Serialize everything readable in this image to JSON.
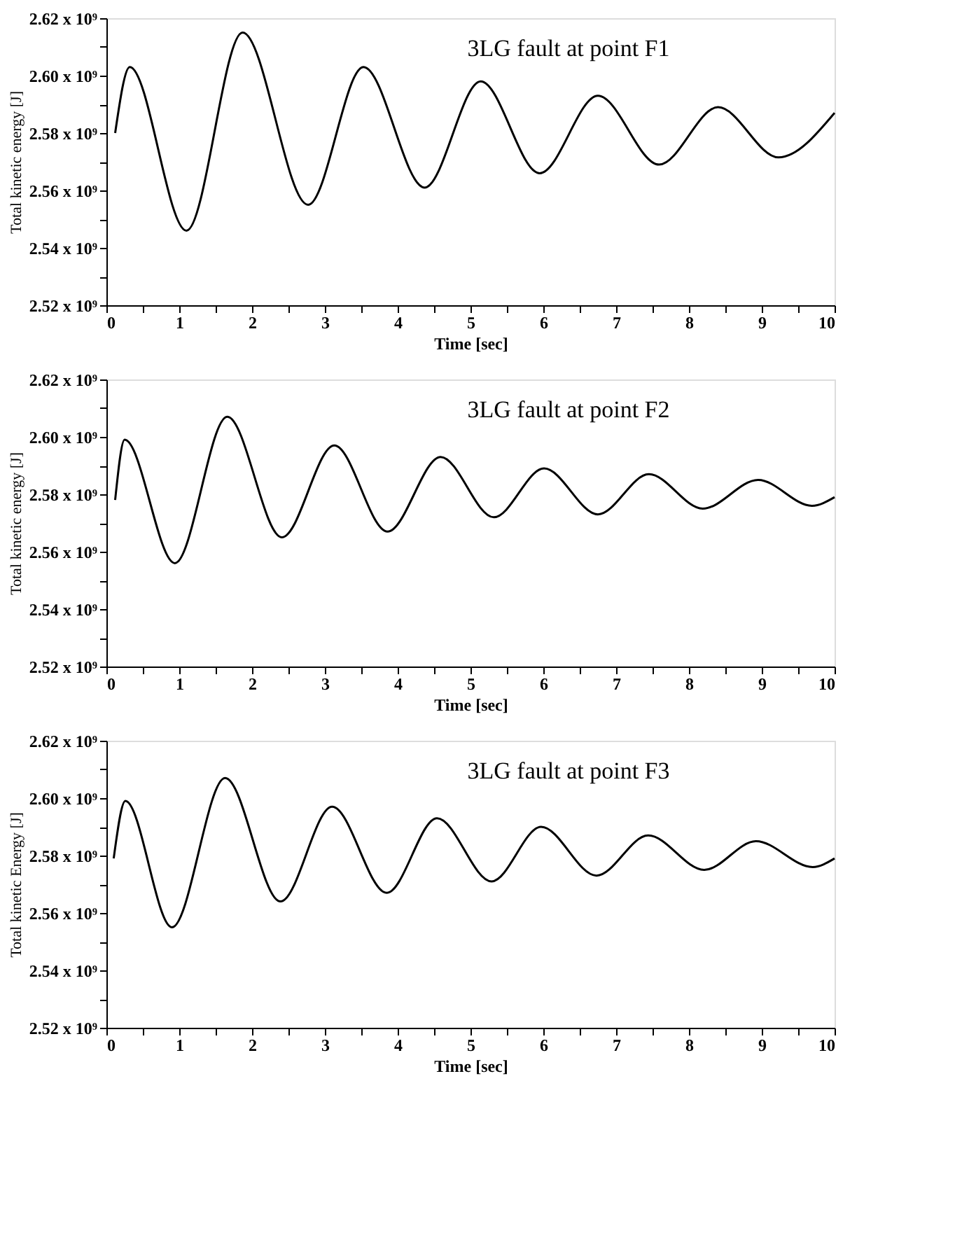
{
  "chart_data": [
    {
      "type": "line",
      "xlabel": "Time [sec]",
      "ylabel": "Total kinetic energy [J]",
      "annotations": [
        "3LG fault at point F1"
      ],
      "grid": false,
      "marker": "none",
      "line_style": "solid",
      "xlim": [
        0,
        10
      ],
      "ylim": [
        2520000000.0,
        2620000000.0
      ],
      "xticks": [
        0,
        {
          "value": 0.5,
          "label": null
        },
        1,
        {
          "value": 1.5,
          "label": null
        },
        2,
        {
          "value": 2.5,
          "label": null
        },
        3,
        {
          "value": 3.5,
          "label": null
        },
        4,
        {
          "value": 4.5,
          "label": null
        },
        5,
        {
          "value": 5.5,
          "label": null
        },
        6,
        {
          "value": 6.5,
          "label": null
        },
        7,
        {
          "value": 7.5,
          "label": null
        },
        8,
        {
          "value": 8.5,
          "label": null
        },
        9,
        {
          "value": 9.5,
          "label": null
        },
        10
      ],
      "yticks": [
        {
          "value": 2520000000.0,
          "label": "2.52 x 10⁹"
        },
        {
          "value": 2530000000.0,
          "label": null
        },
        {
          "value": 2540000000.0,
          "label": "2.54 x 10⁹"
        },
        {
          "value": 2550000000.0,
          "label": null
        },
        {
          "value": 2560000000.0,
          "label": "2.56 x 10⁹"
        },
        {
          "value": 2570000000.0,
          "label": null
        },
        {
          "value": 2580000000.0,
          "label": "2.58 x 10⁹"
        },
        {
          "value": 2590000000.0,
          "label": null
        },
        {
          "value": 2600000000.0,
          "label": "2.60 x 10⁹"
        },
        {
          "value": 2610000000.0,
          "label": null
        },
        {
          "value": 2620000000.0,
          "label": "2.62 x 10⁹"
        }
      ],
      "series": [
        {
          "color": "#000000",
          "x": [
            0.12,
            0.32,
            1.1,
            1.87,
            2.77,
            3.53,
            4.37,
            5.14,
            5.95,
            6.75,
            7.59,
            8.4,
            9.23,
            10.0
          ],
          "values": [
            2580000000.0,
            2603000000.0,
            2546000000.0,
            2615000000.0,
            2555000000.0,
            2603000000.0,
            2561000000.0,
            2598000000.0,
            2566000000.0,
            2593000000.0,
            2569000000.0,
            2589000000.0,
            2571500000.0,
            2587000000.0
          ]
        }
      ]
    },
    {
      "type": "line",
      "xlabel": "Time [sec]",
      "ylabel": "Total kinetic energy [J]",
      "annotations": [
        "3LG fault at point F2"
      ],
      "grid": false,
      "marker": "none",
      "line_style": "solid",
      "xlim": [
        0,
        10
      ],
      "ylim": [
        2520000000.0,
        2620000000.0
      ],
      "xticks": [
        0,
        {
          "value": 0.5,
          "label": null
        },
        1,
        {
          "value": 1.5,
          "label": null
        },
        2,
        {
          "value": 2.5,
          "label": null
        },
        3,
        {
          "value": 3.5,
          "label": null
        },
        4,
        {
          "value": 4.5,
          "label": null
        },
        5,
        {
          "value": 5.5,
          "label": null
        },
        6,
        {
          "value": 6.5,
          "label": null
        },
        7,
        {
          "value": 7.5,
          "label": null
        },
        8,
        {
          "value": 8.5,
          "label": null
        },
        9,
        {
          "value": 9.5,
          "label": null
        },
        10
      ],
      "yticks": [
        {
          "value": 2520000000.0,
          "label": "2.52 x 10⁹"
        },
        {
          "value": 2530000000.0,
          "label": null
        },
        {
          "value": 2540000000.0,
          "label": "2.54 x 10⁹"
        },
        {
          "value": 2550000000.0,
          "label": null
        },
        {
          "value": 2560000000.0,
          "label": "2.56 x 10⁹"
        },
        {
          "value": 2570000000.0,
          "label": null
        },
        {
          "value": 2580000000.0,
          "label": "2.58 x 10⁹"
        },
        {
          "value": 2590000000.0,
          "label": null
        },
        {
          "value": 2600000000.0,
          "label": "2.60 x 10⁹"
        },
        {
          "value": 2610000000.0,
          "label": null
        },
        {
          "value": 2620000000.0,
          "label": "2.62 x 10⁹"
        }
      ],
      "series": [
        {
          "color": "#000000",
          "x": [
            0.12,
            0.25,
            0.94,
            1.66,
            2.41,
            3.13,
            3.86,
            4.59,
            5.32,
            6.01,
            6.75,
            7.45,
            8.19,
            8.95,
            9.69,
            10.0
          ],
          "values": [
            2578000000.0,
            2599000000.0,
            2556000000.0,
            2607000000.0,
            2565000000.0,
            2597000000.0,
            2567000000.0,
            2593000000.0,
            2572000000.0,
            2589000000.0,
            2573000000.0,
            2587000000.0,
            2575000000.0,
            2585000000.0,
            2576000000.0,
            2579000000.0
          ]
        }
      ]
    },
    {
      "type": "line",
      "xlabel": "Time [sec]",
      "ylabel": "Total kinetic Energy [J]",
      "annotations": [
        "3LG fault at point F3"
      ],
      "grid": false,
      "marker": "none",
      "line_style": "solid",
      "xlim": [
        0,
        10
      ],
      "ylim": [
        2520000000.0,
        2620000000.0
      ],
      "xticks": [
        0,
        {
          "value": 0.5,
          "label": null
        },
        1,
        {
          "value": 1.5,
          "label": null
        },
        2,
        {
          "value": 2.5,
          "label": null
        },
        3,
        {
          "value": 3.5,
          "label": null
        },
        4,
        {
          "value": 4.5,
          "label": null
        },
        5,
        {
          "value": 5.5,
          "label": null
        },
        6,
        {
          "value": 6.5,
          "label": null
        },
        7,
        {
          "value": 7.5,
          "label": null
        },
        8,
        {
          "value": 8.5,
          "label": null
        },
        9,
        {
          "value": 9.5,
          "label": null
        },
        10
      ],
      "yticks": [
        {
          "value": 2520000000.0,
          "label": "2.52 x 10⁹"
        },
        {
          "value": 2530000000.0,
          "label": null
        },
        {
          "value": 2540000000.0,
          "label": "2.54 x 10⁹"
        },
        {
          "value": 2550000000.0,
          "label": null
        },
        {
          "value": 2560000000.0,
          "label": "2.56 x 10⁹"
        },
        {
          "value": 2570000000.0,
          "label": null
        },
        {
          "value": 2580000000.0,
          "label": "2.58 x 10⁹"
        },
        {
          "value": 2590000000.0,
          "label": null
        },
        {
          "value": 2600000000.0,
          "label": "2.60 x 10⁹"
        },
        {
          "value": 2610000000.0,
          "label": null
        },
        {
          "value": 2620000000.0,
          "label": "2.62 x 10⁹"
        }
      ],
      "series": [
        {
          "color": "#000000",
          "x": [
            0.1,
            0.26,
            0.9,
            1.63,
            2.39,
            3.1,
            3.85,
            4.54,
            5.29,
            5.97,
            6.73,
            7.44,
            8.21,
            8.92,
            9.7,
            10.0
          ],
          "values": [
            2579000000.0,
            2599000000.0,
            2555000000.0,
            2607000000.0,
            2564000000.0,
            2597000000.0,
            2567000000.0,
            2593000000.0,
            2571000000.0,
            2590000000.0,
            2573000000.0,
            2587000000.0,
            2575000000.0,
            2585000000.0,
            2576000000.0,
            2579000000.0
          ]
        }
      ]
    }
  ]
}
